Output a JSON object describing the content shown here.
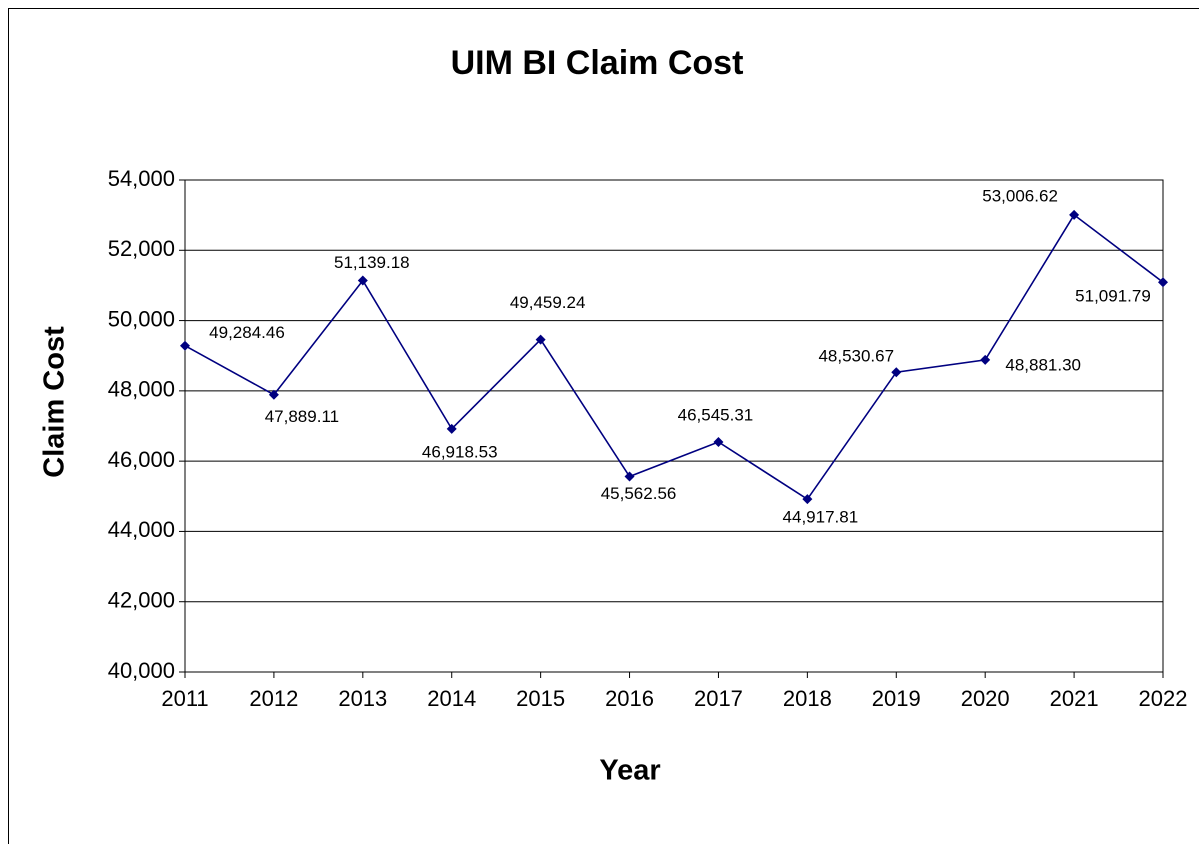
{
  "chart_data": {
    "type": "line",
    "title": "UIM BI Claim Cost",
    "x_label": "Year",
    "y_label": "Claim Cost",
    "categories": [
      "2011",
      "2012",
      "2013",
      "2014",
      "2015",
      "2016",
      "2017",
      "2018",
      "2019",
      "2020",
      "2021",
      "2022"
    ],
    "values": [
      49284.46,
      47889.11,
      51139.18,
      46918.53,
      49459.24,
      45562.56,
      46545.31,
      44917.81,
      48530.67,
      48881.3,
      53006.62,
      51091.79
    ],
    "value_labels": [
      "49,284.46",
      "47,889.11",
      "51,139.18",
      "46,918.53",
      "49,459.24",
      "45,562.56",
      "46,545.31",
      "44,917.81",
      "48,530.67",
      "48,881.30",
      "53,006.62",
      "51,091.79"
    ],
    "color": "#000080",
    "ylim": [
      40000,
      54000
    ],
    "yticks": [
      {
        "value": 40000,
        "label": "40,000"
      },
      {
        "value": 42000,
        "label": "42,000"
      },
      {
        "value": 44000,
        "label": "44,000"
      },
      {
        "value": 46000,
        "label": "46,000"
      },
      {
        "value": 48000,
        "label": "48,000"
      },
      {
        "value": 50000,
        "label": "50,000"
      },
      {
        "value": 52000,
        "label": "52,000"
      },
      {
        "value": 54000,
        "label": "54,000"
      }
    ],
    "grid": true
  }
}
